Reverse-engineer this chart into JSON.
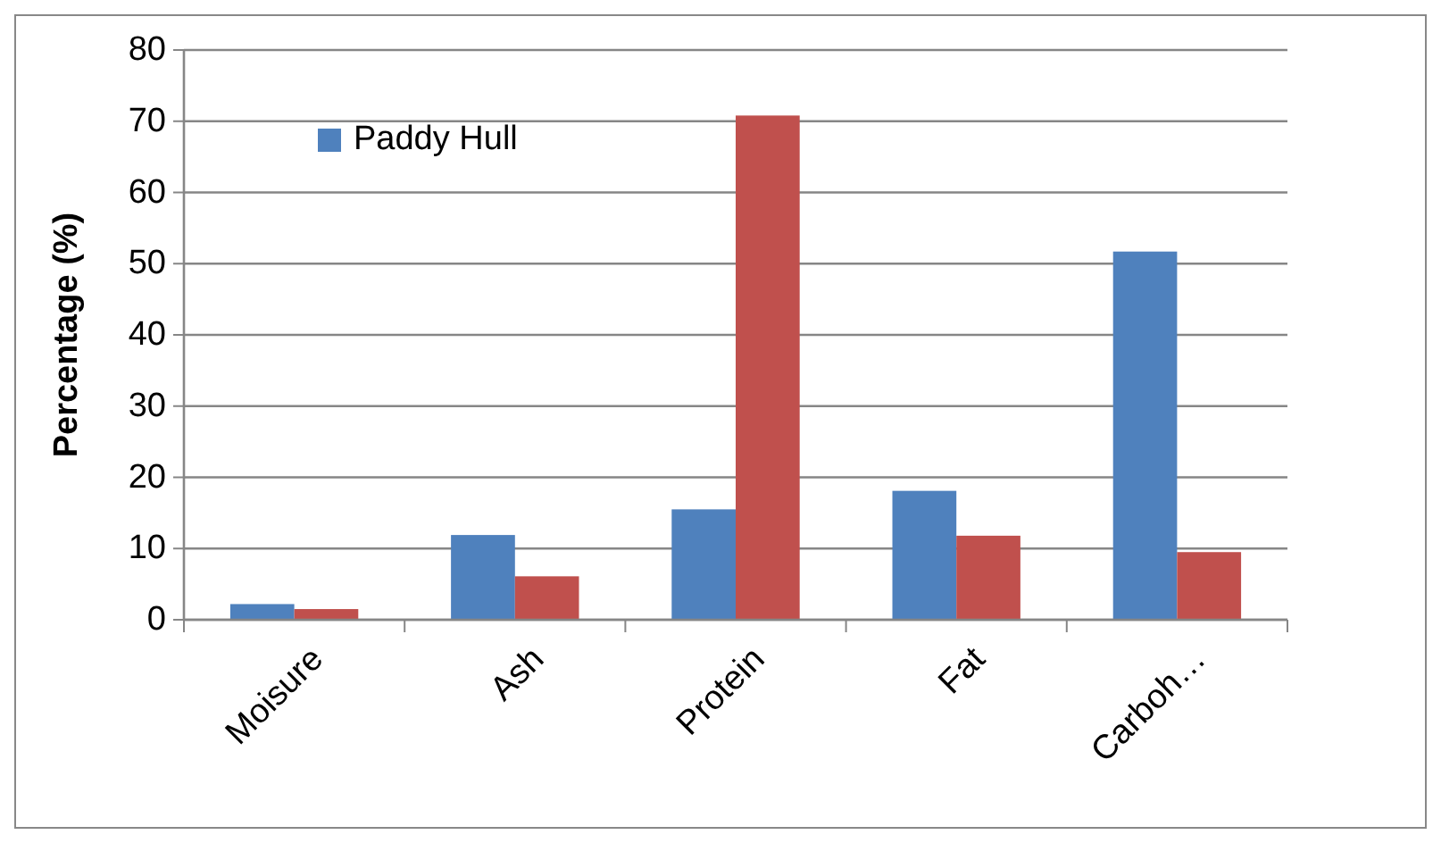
{
  "chart_data": {
    "type": "bar",
    "ylabel": "Percentage (%)",
    "categories": [
      "Moisure",
      "Ash",
      "Protein",
      "Fat",
      "Carboh…"
    ],
    "series": [
      {
        "name": "Paddy Hull",
        "color": "#4f81bd",
        "values": [
          2.2,
          11.9,
          15.5,
          18.1,
          51.7
        ]
      },
      {
        "color": "#c0504d",
        "values": [
          1.5,
          6.1,
          70.8,
          11.8,
          9.5
        ]
      }
    ],
    "ylim": [
      0,
      80
    ],
    "yticks": [
      0,
      10,
      20,
      30,
      40,
      50,
      60,
      70,
      80
    ],
    "grid": "y",
    "legend": "top left"
  }
}
